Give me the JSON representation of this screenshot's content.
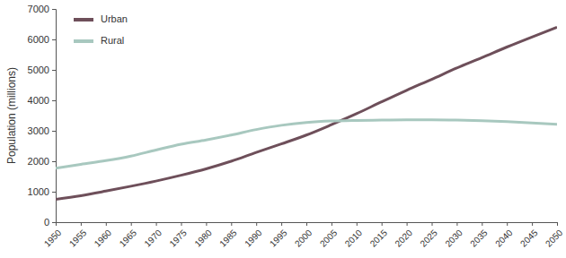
{
  "chart_data": {
    "type": "line",
    "y_label": "Population (millions)",
    "x": [
      1950,
      1955,
      1960,
      1965,
      1970,
      1975,
      1980,
      1985,
      1990,
      1995,
      2000,
      2005,
      2010,
      2015,
      2020,
      2025,
      2030,
      2035,
      2040,
      2045,
      2050
    ],
    "series": [
      {
        "name": "Urban",
        "color": "#6e4f5a",
        "values": [
          750,
          870,
          1020,
          1180,
          1350,
          1540,
          1750,
          2000,
          2290,
          2570,
          2860,
          3200,
          3560,
          3950,
          4330,
          4690,
          5060,
          5400,
          5750,
          6080,
          6400
        ]
      },
      {
        "name": "Rural",
        "color": "#a8c8bf",
        "values": [
          1770,
          1900,
          2020,
          2170,
          2370,
          2560,
          2700,
          2860,
          3040,
          3180,
          3270,
          3320,
          3340,
          3350,
          3360,
          3360,
          3350,
          3330,
          3300,
          3260,
          3210
        ]
      }
    ],
    "xlim": [
      1950,
      2050
    ],
    "xticks": [
      1950,
      1955,
      1960,
      1965,
      1970,
      1975,
      1980,
      1985,
      1990,
      1995,
      2000,
      2005,
      2010,
      2015,
      2020,
      2025,
      2030,
      2035,
      2040,
      2045,
      2050
    ],
    "ylim": [
      0,
      7000
    ],
    "yticks": [
      0,
      1000,
      2000,
      3000,
      4000,
      5000,
      6000,
      7000
    ],
    "grid": false,
    "legend": "upper left"
  }
}
